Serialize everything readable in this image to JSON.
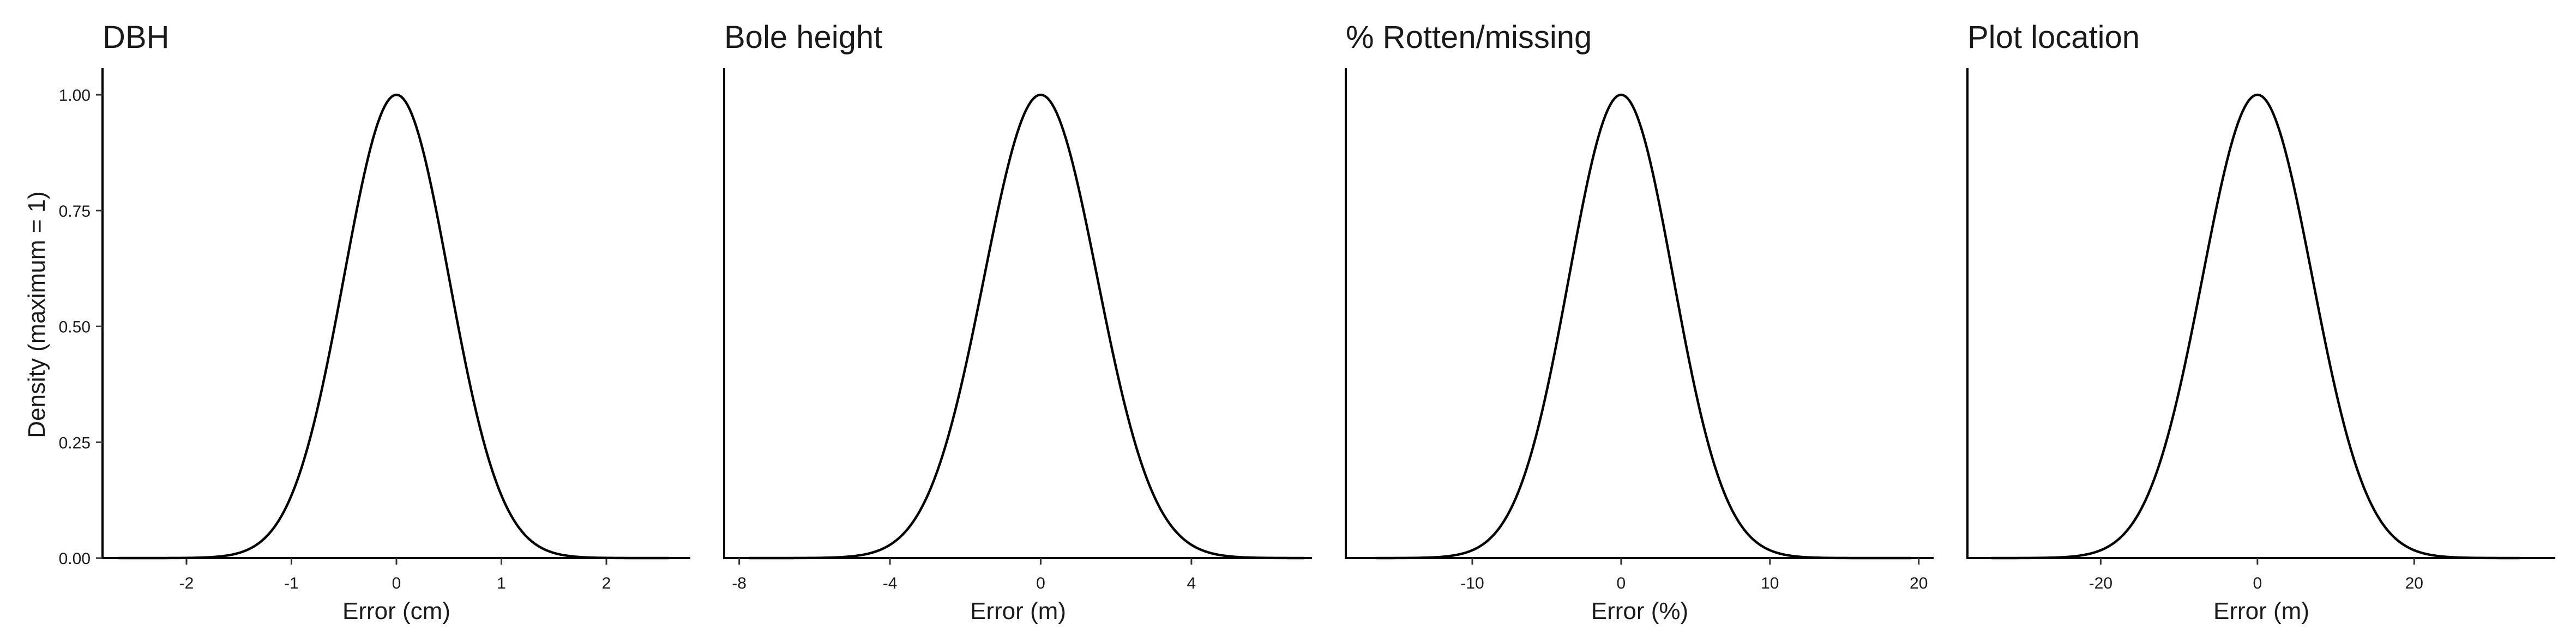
{
  "chart_data": {
    "ylabel": "Density (maximum = 1)",
    "ylim": [
      0,
      1.04
    ],
    "y_ticks": [
      0.0,
      0.25,
      0.5,
      0.75,
      1.0
    ],
    "y_tick_labels": [
      "0.00",
      "0.25",
      "0.50",
      "0.75",
      "1.00"
    ],
    "panels": [
      {
        "type": "line",
        "title": "DBH",
        "xlabel": "Error (cm)",
        "xlim": [
          -2.8,
          2.8
        ],
        "x_ticks": [
          -2,
          -1,
          0,
          1,
          2
        ],
        "x_tick_labels": [
          "-2",
          "-1",
          "0",
          "1",
          "2"
        ],
        "x_range": [
          -2.65,
          2.6
        ],
        "sd": 0.5,
        "peak": 1.0
      },
      {
        "type": "line",
        "title": "Bole height",
        "xlabel": "Error (m)",
        "xlim": [
          -8.4,
          7.2
        ],
        "x_ticks": [
          -8,
          -4,
          0,
          4
        ],
        "x_tick_labels": [
          "-8",
          "-4",
          "0",
          "4"
        ],
        "x_range": [
          -7.75,
          7.0
        ],
        "sd": 1.5,
        "peak": 1.0
      },
      {
        "type": "line",
        "title": "% Rotten/missing",
        "xlabel": "Error (%)",
        "xlim": [
          -18.5,
          21.0
        ],
        "x_ticks": [
          -10,
          0,
          10,
          20
        ],
        "x_tick_labels": [
          "-10",
          "0",
          "10",
          "20"
        ],
        "x_range": [
          -16.5,
          19.5
        ],
        "sd": 3.5,
        "peak": 1.0
      },
      {
        "type": "line",
        "title": "Plot location",
        "xlabel": "Error (m)",
        "xlim": [
          -37.0,
          38.0
        ],
        "x_ticks": [
          -20,
          0,
          20
        ],
        "x_tick_labels": [
          "-20",
          "0",
          "20"
        ],
        "x_range": [
          -34.0,
          33.5
        ],
        "sd": 7.0,
        "peak": 1.0
      }
    ]
  }
}
